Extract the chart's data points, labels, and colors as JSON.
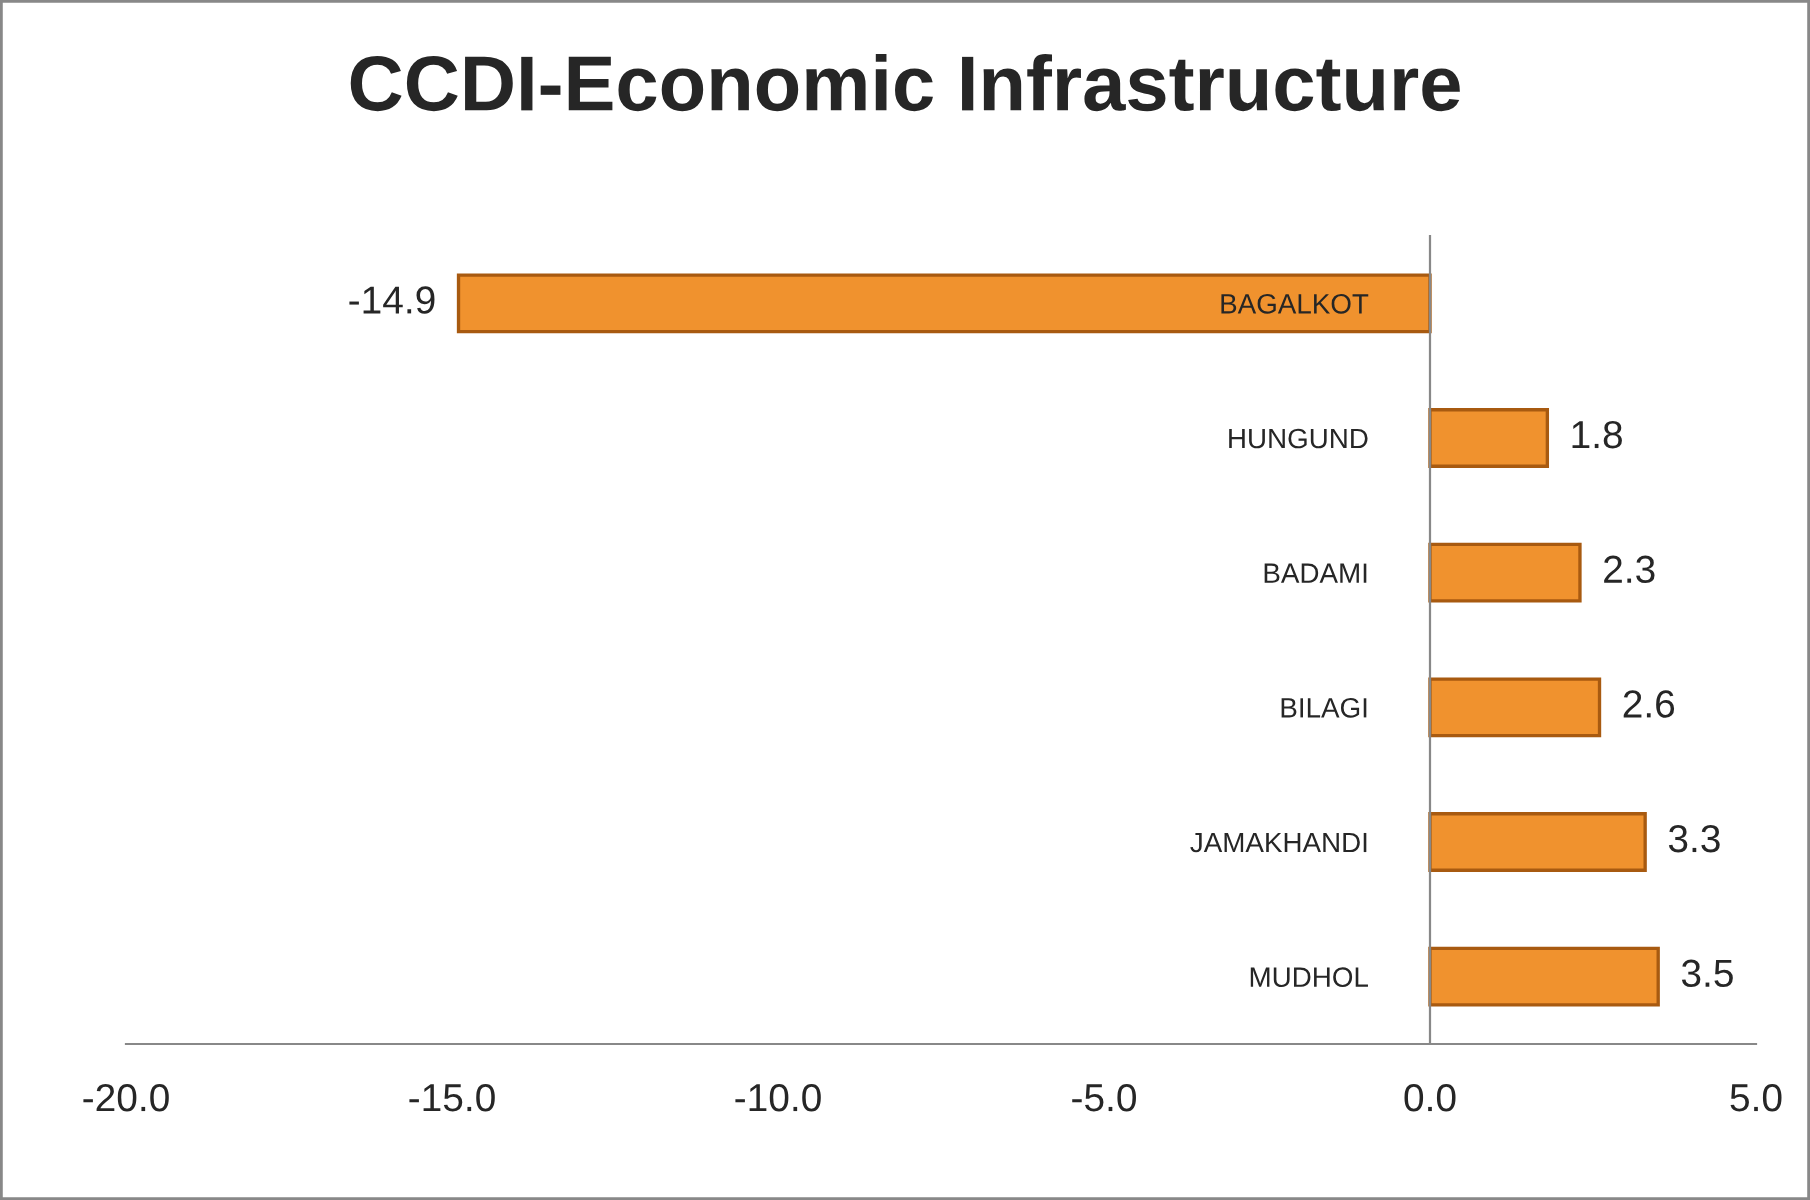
{
  "chart_data": {
    "type": "bar",
    "orientation": "horizontal",
    "title": "CCDI-Economic Infrastructure",
    "categories": [
      "BAGALKOT",
      "HUNGUND",
      "BADAMI",
      "BILAGI",
      "JAMAKHANDI",
      "MUDHOL"
    ],
    "values": [
      -14.9,
      1.8,
      2.3,
      2.6,
      3.3,
      3.5
    ],
    "color": "#f0922e",
    "xlim": [
      -20,
      5
    ],
    "xticks": [
      {
        "value": -20,
        "label": "-20.0"
      },
      {
        "value": -15,
        "label": "-15.0"
      },
      {
        "value": -10,
        "label": "-10.0"
      },
      {
        "value": -5,
        "label": "-5.0"
      },
      {
        "value": 0,
        "label": "0.0"
      },
      {
        "value": 5,
        "label": "5.0"
      }
    ],
    "data_labels": true,
    "grid": false,
    "legend": false
  }
}
